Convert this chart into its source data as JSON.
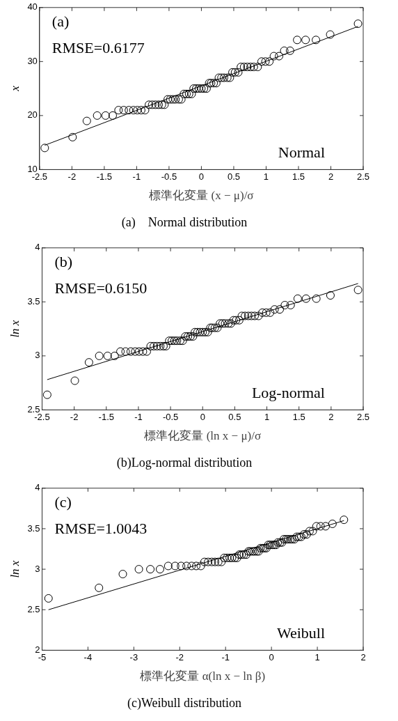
{
  "chart_data": [
    {
      "type": "scatter",
      "title": "(a)　Normal distribution",
      "xlabel": "標準化変量 (x − μ)/σ",
      "ylabel": "x",
      "annotations": [
        "(a)",
        "RMSE=0.6177",
        "Normal"
      ],
      "xlim": [
        -2.5,
        2.5
      ],
      "xticks": [
        -2.5,
        -2,
        -1.5,
        -1,
        -0.5,
        0,
        0.5,
        1,
        1.5,
        2,
        2.5
      ],
      "ylim": [
        10,
        40
      ],
      "yticks": [
        10,
        20,
        30,
        40
      ],
      "grid": false,
      "legend": false,
      "marker": "circle",
      "series": [
        {
          "color": "#000000",
          "x": [
            -2.42,
            -1.99,
            -1.77,
            -1.61,
            -1.48,
            -1.37,
            -1.28,
            -1.2,
            -1.12,
            -1.05,
            -0.99,
            -0.93,
            -0.87,
            -0.81,
            -0.76,
            -0.71,
            -0.66,
            -0.61,
            -0.57,
            -0.52,
            -0.48,
            -0.44,
            -0.4,
            -0.35,
            -0.31,
            -0.27,
            -0.23,
            -0.19,
            -0.15,
            -0.12,
            -0.08,
            -0.04,
            0,
            0.04,
            0.08,
            0.12,
            0.15,
            0.19,
            0.23,
            0.27,
            0.31,
            0.35,
            0.4,
            0.44,
            0.48,
            0.52,
            0.57,
            0.61,
            0.66,
            0.71,
            0.76,
            0.81,
            0.87,
            0.93,
            0.99,
            1.05,
            1.12,
            1.2,
            1.28,
            1.37,
            1.48,
            1.61,
            1.77,
            1.99,
            2.42
          ],
          "values": [
            14,
            16,
            19,
            20,
            20,
            20,
            21,
            21,
            21,
            21,
            21,
            21,
            21,
            22,
            22,
            22,
            22,
            22,
            22,
            23,
            23,
            23,
            23,
            23,
            23,
            24,
            24,
            24,
            24,
            25,
            25,
            25,
            25,
            25,
            25,
            26,
            26,
            26,
            26,
            27,
            27,
            27,
            27,
            27,
            28,
            28,
            28,
            29,
            29,
            29,
            29,
            29,
            29,
            30,
            30,
            30,
            31,
            31,
            32,
            32,
            34,
            34,
            34,
            35,
            37
          ]
        },
        {
          "type": "line",
          "marker": "none",
          "color": "#000000",
          "x": [
            -2.42,
            2.42
          ],
          "values": [
            14.5,
            36.5
          ]
        }
      ]
    },
    {
      "type": "scatter",
      "title": "(b)Log-normal distribution",
      "xlabel": "標準化変量 (ln x − μ)/σ",
      "ylabel": "ln x",
      "annotations": [
        "(b)",
        "RMSE=0.6150",
        "Log-normal"
      ],
      "xlim": [
        -2.5,
        2.5
      ],
      "xticks": [
        -2.5,
        -2,
        -1.5,
        -1,
        -0.5,
        0,
        0.5,
        1,
        1.5,
        2,
        2.5
      ],
      "ylim": [
        2.5,
        4
      ],
      "yticks": [
        2.5,
        3,
        3.5,
        4
      ],
      "grid": false,
      "legend": false,
      "marker": "circle",
      "series": [
        {
          "color": "#000000",
          "x": [
            -2.42,
            -1.99,
            -1.77,
            -1.61,
            -1.48,
            -1.37,
            -1.28,
            -1.2,
            -1.12,
            -1.05,
            -0.99,
            -0.93,
            -0.87,
            -0.81,
            -0.76,
            -0.71,
            -0.66,
            -0.61,
            -0.57,
            -0.52,
            -0.48,
            -0.44,
            -0.4,
            -0.35,
            -0.31,
            -0.27,
            -0.23,
            -0.19,
            -0.15,
            -0.12,
            -0.08,
            -0.04,
            0,
            0.04,
            0.08,
            0.12,
            0.15,
            0.19,
            0.23,
            0.27,
            0.31,
            0.35,
            0.4,
            0.44,
            0.48,
            0.52,
            0.57,
            0.61,
            0.66,
            0.71,
            0.76,
            0.81,
            0.87,
            0.93,
            0.99,
            1.05,
            1.12,
            1.2,
            1.28,
            1.37,
            1.48,
            1.61,
            1.77,
            1.99,
            2.42
          ],
          "values": [
            2.64,
            2.77,
            2.94,
            3.0,
            3.0,
            3.0,
            3.04,
            3.04,
            3.04,
            3.04,
            3.04,
            3.04,
            3.04,
            3.09,
            3.09,
            3.09,
            3.09,
            3.09,
            3.09,
            3.14,
            3.14,
            3.14,
            3.14,
            3.14,
            3.14,
            3.18,
            3.18,
            3.18,
            3.18,
            3.22,
            3.22,
            3.22,
            3.22,
            3.22,
            3.22,
            3.26,
            3.26,
            3.26,
            3.26,
            3.3,
            3.3,
            3.3,
            3.3,
            3.3,
            3.33,
            3.33,
            3.33,
            3.37,
            3.37,
            3.37,
            3.37,
            3.37,
            3.37,
            3.4,
            3.4,
            3.4,
            3.43,
            3.43,
            3.47,
            3.47,
            3.53,
            3.53,
            3.53,
            3.56,
            3.61
          ]
        },
        {
          "type": "line",
          "marker": "none",
          "color": "#000000",
          "x": [
            -2.42,
            2.42
          ],
          "values": [
            2.78,
            3.67
          ]
        }
      ]
    },
    {
      "type": "scatter",
      "title": "(c)Weibull distribution",
      "xlabel": "標準化変量 α(ln x − ln β)",
      "ylabel": "ln x",
      "annotations": [
        "(c)",
        "RMSE=1.0043",
        "Weibull"
      ],
      "xlim": [
        -5,
        2
      ],
      "xticks": [
        -5,
        -4,
        -3,
        -2,
        -1,
        0,
        1,
        2
      ],
      "ylim": [
        2,
        4
      ],
      "yticks": [
        2,
        2.5,
        3,
        3.5,
        4
      ],
      "grid": false,
      "legend": false,
      "marker": "circle",
      "series": [
        {
          "color": "#000000",
          "x": [
            -4.86,
            -3.76,
            -3.24,
            -2.89,
            -2.64,
            -2.43,
            -2.25,
            -2.1,
            -1.97,
            -1.85,
            -1.74,
            -1.64,
            -1.54,
            -1.46,
            -1.38,
            -1.3,
            -1.23,
            -1.16,
            -1.09,
            -1.03,
            -0.97,
            -0.91,
            -0.86,
            -0.8,
            -0.75,
            -0.7,
            -0.65,
            -0.6,
            -0.55,
            -0.5,
            -0.46,
            -0.41,
            -0.37,
            -0.32,
            -0.28,
            -0.24,
            -0.19,
            -0.15,
            -0.11,
            -0.07,
            -0.03,
            0.02,
            0.06,
            0.1,
            0.14,
            0.19,
            0.23,
            0.27,
            0.32,
            0.36,
            0.41,
            0.45,
            0.5,
            0.55,
            0.6,
            0.65,
            0.71,
            0.77,
            0.83,
            0.9,
            0.98,
            1.07,
            1.18,
            1.33,
            1.58
          ],
          "values": [
            2.64,
            2.77,
            2.94,
            3.0,
            3.0,
            3.0,
            3.04,
            3.04,
            3.04,
            3.04,
            3.04,
            3.04,
            3.04,
            3.09,
            3.09,
            3.09,
            3.09,
            3.09,
            3.09,
            3.14,
            3.14,
            3.14,
            3.14,
            3.14,
            3.14,
            3.18,
            3.18,
            3.18,
            3.18,
            3.22,
            3.22,
            3.22,
            3.22,
            3.22,
            3.22,
            3.26,
            3.26,
            3.26,
            3.26,
            3.3,
            3.3,
            3.3,
            3.3,
            3.3,
            3.33,
            3.33,
            3.33,
            3.37,
            3.37,
            3.37,
            3.37,
            3.37,
            3.37,
            3.4,
            3.4,
            3.4,
            3.43,
            3.43,
            3.47,
            3.47,
            3.53,
            3.53,
            3.53,
            3.56,
            3.61
          ]
        },
        {
          "type": "line",
          "marker": "none",
          "color": "#000000",
          "x": [
            -4.86,
            1.58
          ],
          "values": [
            2.5,
            3.6
          ]
        }
      ]
    }
  ]
}
